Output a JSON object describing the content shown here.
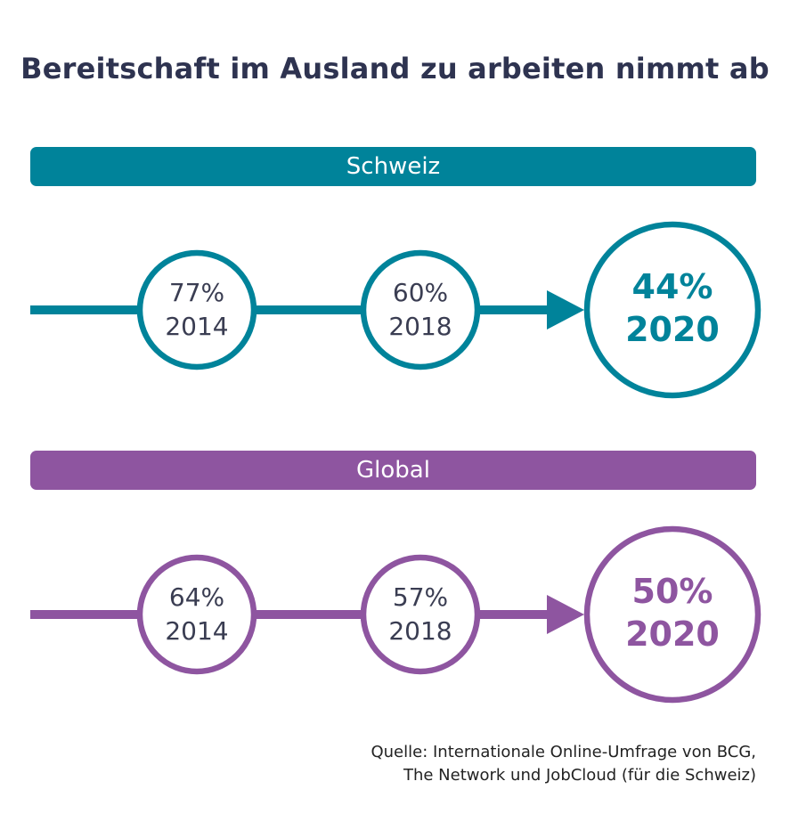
{
  "title": "Bereitschaft im Ausland zu arbeiten nimmt ab",
  "colors": {
    "schweiz": "#00839a",
    "global": "#8e55a0",
    "title_text": "#2e3350",
    "circle_text": "#3a3d52"
  },
  "chart_data": {
    "type": "line",
    "title": "Bereitschaft im Ausland zu arbeiten nimmt ab",
    "unit": "%",
    "x": [
      "2014",
      "2018",
      "2020"
    ],
    "groups": [
      {
        "name": "Schweiz",
        "color": "#00839a",
        "points": [
          {
            "year": "2014",
            "value": 77,
            "label": "77%"
          },
          {
            "year": "2018",
            "value": 60,
            "label": "60%"
          },
          {
            "year": "2020",
            "value": 44,
            "label": "44%"
          }
        ]
      },
      {
        "name": "Global",
        "color": "#8e55a0",
        "points": [
          {
            "year": "2014",
            "value": 64,
            "label": "64%"
          },
          {
            "year": "2018",
            "value": 57,
            "label": "57%"
          },
          {
            "year": "2020",
            "value": 50,
            "label": "50%"
          }
        ]
      }
    ]
  },
  "source": {
    "line1": "Quelle: Internationale Online-Umfrage von BCG,",
    "line2": "The Network und JobCloud (für die Schweiz)"
  }
}
